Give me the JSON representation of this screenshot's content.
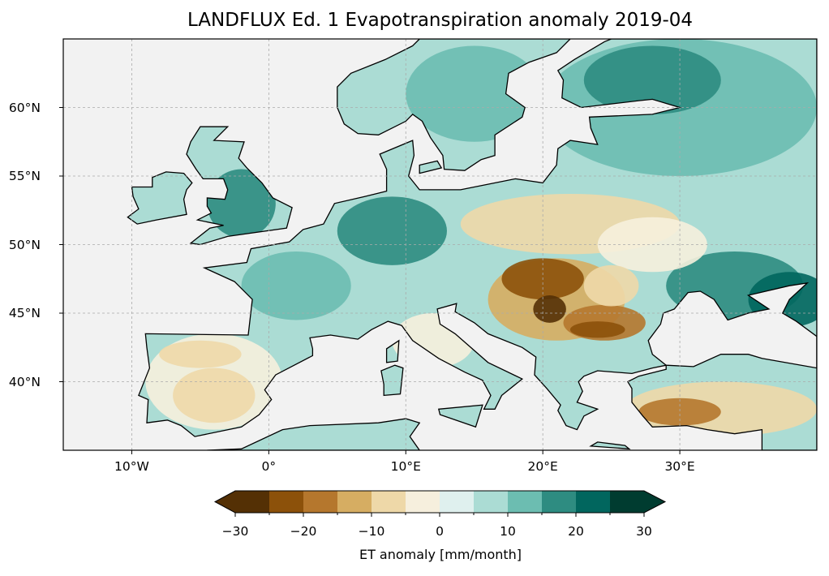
{
  "title": "LANDFLUX Ed. 1 Evapotranspiration anomaly 2019-04",
  "map": {
    "extent": {
      "lon": [
        -15,
        40
      ],
      "lat": [
        35,
        65
      ]
    },
    "ocean_color": "#f2f2f2",
    "lon_ticks": [
      {
        "value": -10,
        "label": "10°W"
      },
      {
        "value": 0,
        "label": "0°"
      },
      {
        "value": 10,
        "label": "10°E"
      },
      {
        "value": 20,
        "label": "20°E"
      },
      {
        "value": 30,
        "label": "30°E"
      }
    ],
    "lat_ticks": [
      {
        "value": 40,
        "label": "40°N"
      },
      {
        "value": 45,
        "label": "45°N"
      },
      {
        "value": 50,
        "label": "50°N"
      },
      {
        "value": 55,
        "label": "55°N"
      },
      {
        "value": 60,
        "label": "60°N"
      }
    ],
    "gridlines": true
  },
  "colorbar": {
    "label": "ET anomaly [mm/month]",
    "levels": [
      -30,
      -25,
      -20,
      -15,
      -10,
      -5,
      0,
      5,
      10,
      15,
      20,
      25,
      30
    ],
    "colors": [
      "#543005",
      "#8c510a",
      "#b5772d",
      "#d6ad62",
      "#eed8a8",
      "#f6efdd",
      "#dff0ee",
      "#abdcd4",
      "#6cbdb1",
      "#2e8c81",
      "#01665e",
      "#003c30"
    ],
    "extend": "both",
    "tick_labels": [
      {
        "value": -30,
        "label": "−30"
      },
      {
        "value": -20,
        "label": "−20"
      },
      {
        "value": -10,
        "label": "−10"
      },
      {
        "value": 0,
        "label": "0"
      },
      {
        "value": 10,
        "label": "10"
      },
      {
        "value": 20,
        "label": "20"
      },
      {
        "value": 30,
        "label": "30"
      }
    ]
  }
}
